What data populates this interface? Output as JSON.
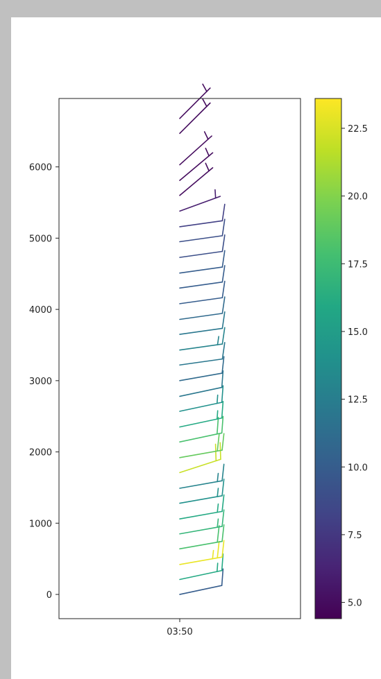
{
  "chart_data": {
    "type": "wind-barbs",
    "x_tick_labels": [
      "03:50"
    ],
    "y_ticks": [
      0,
      1000,
      2000,
      3000,
      4000,
      5000,
      6000
    ],
    "ylim": [
      -340,
      6960
    ],
    "colormap": "viridis",
    "colorbar": {
      "range": [
        4.4,
        23.6
      ],
      "ticks": [
        "5.0",
        "7.5",
        "10.0",
        "12.5",
        "15.0",
        "17.5",
        "20.0",
        "22.5"
      ]
    },
    "barbs": [
      {
        "height": 0,
        "speed": 10,
        "dir_deg": 12
      },
      {
        "height": 210,
        "speed": 16,
        "dir_deg": 12
      },
      {
        "height": 420,
        "speed": 23,
        "dir_deg": 10
      },
      {
        "height": 640,
        "speed": 18,
        "dir_deg": 10
      },
      {
        "height": 850,
        "speed": 17,
        "dir_deg": 10
      },
      {
        "height": 1060,
        "speed": 16,
        "dir_deg": 10
      },
      {
        "height": 1280,
        "speed": 14,
        "dir_deg": 10
      },
      {
        "height": 1490,
        "speed": 13,
        "dir_deg": 10
      },
      {
        "height": 1710,
        "speed": 22,
        "dir_deg": 18
      },
      {
        "height": 1920,
        "speed": 19,
        "dir_deg": 10
      },
      {
        "height": 2140,
        "speed": 18,
        "dir_deg": 12
      },
      {
        "height": 2350,
        "speed": 16,
        "dir_deg": 12
      },
      {
        "height": 2570,
        "speed": 14,
        "dir_deg": 12
      },
      {
        "height": 2780,
        "speed": 12,
        "dir_deg": 12
      },
      {
        "height": 3000,
        "speed": 11,
        "dir_deg": 10
      },
      {
        "height": 3220,
        "speed": 12,
        "dir_deg": 8
      },
      {
        "height": 3430,
        "speed": 13,
        "dir_deg": 8
      },
      {
        "height": 3650,
        "speed": 12,
        "dir_deg": 8
      },
      {
        "height": 3860,
        "speed": 11,
        "dir_deg": 8
      },
      {
        "height": 4080,
        "speed": 10,
        "dir_deg": 8
      },
      {
        "height": 4300,
        "speed": 10,
        "dir_deg": 8
      },
      {
        "height": 4510,
        "speed": 10,
        "dir_deg": 8
      },
      {
        "height": 4730,
        "speed": 9,
        "dir_deg": 8
      },
      {
        "height": 4950,
        "speed": 9,
        "dir_deg": 8
      },
      {
        "height": 5160,
        "speed": 8,
        "dir_deg": 8
      },
      {
        "height": 5380,
        "speed": 6,
        "dir_deg": 20
      },
      {
        "height": 5600,
        "speed": 5,
        "dir_deg": 40
      },
      {
        "height": 5810,
        "speed": 5,
        "dir_deg": 40
      },
      {
        "height": 6030,
        "speed": 5,
        "dir_deg": 42
      },
      {
        "height": 6470,
        "speed": 5,
        "dir_deg": 45
      },
      {
        "height": 6680,
        "speed": 5,
        "dir_deg": 45
      }
    ]
  }
}
